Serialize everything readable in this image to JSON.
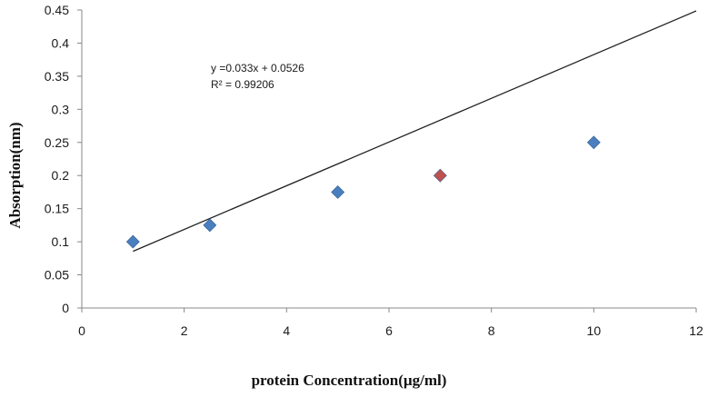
{
  "chart_data": {
    "type": "scatter",
    "title": "",
    "xlabel": "protein Concentration(µg/ml)",
    "ylabel": "Absorption(nm)",
    "xlim": [
      0,
      12
    ],
    "ylim": [
      0,
      0.45
    ],
    "x_ticks": [
      0,
      2,
      4,
      6,
      8,
      10,
      12
    ],
    "y_ticks": [
      0,
      0.05,
      0.1,
      0.15,
      0.2,
      0.25,
      0.3,
      0.35,
      0.4,
      0.45
    ],
    "x_tick_labels": [
      "0",
      "2",
      "4",
      "6",
      "8",
      "10",
      "12"
    ],
    "y_tick_labels": [
      "0",
      "0.05",
      "0.1",
      "0.15",
      "0.2",
      "0.25",
      "0.3",
      "0.35",
      "0.4",
      "0.45"
    ],
    "grid": false,
    "legend": "none",
    "series": [
      {
        "marker": "diamond",
        "color": "#4a7ebf",
        "points": [
          {
            "x": 1,
            "y": 0.1
          },
          {
            "x": 2.5,
            "y": 0.125
          },
          {
            "x": 5,
            "y": 0.175
          },
          {
            "x": 7,
            "y": 0.2,
            "color": "#c0504d"
          },
          {
            "x": 10,
            "y": 0.25
          }
        ]
      }
    ],
    "trendline": {
      "type": "linear",
      "slope": 0.033,
      "intercept": 0.0526,
      "x_range": [
        1,
        12
      ],
      "color": "#222222",
      "equation_text": "y =0.033x + 0.0526",
      "r2_text": "R² = 0.99206"
    }
  }
}
